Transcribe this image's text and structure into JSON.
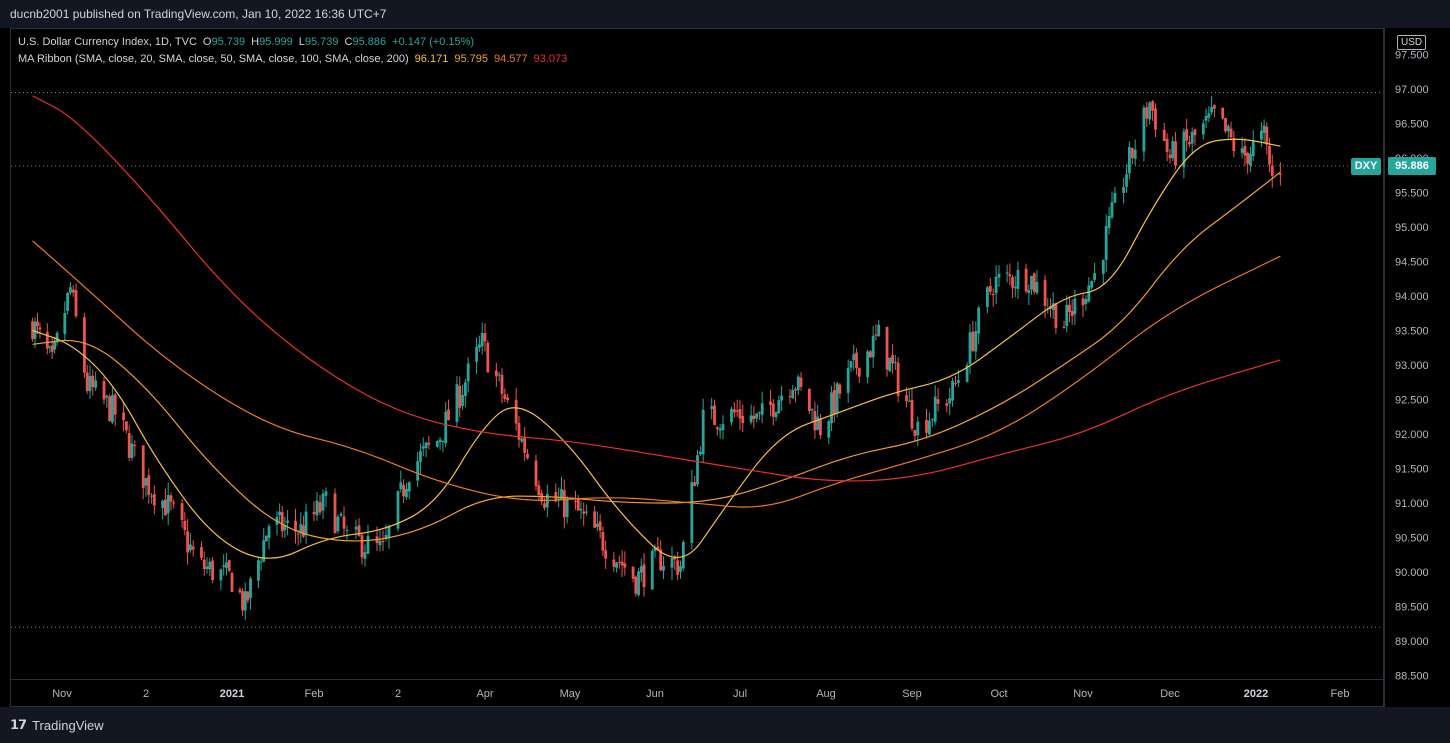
{
  "publisher": "ducnb2001 published on TradingView.com, Jan 10, 2022 16:36 UTC+7",
  "legend": {
    "symbol": "U.S. Dollar Currency Index, 1D, TVC",
    "o_label": "O",
    "o": "95.739",
    "h_label": "H",
    "h": "95.999",
    "l_label": "L",
    "l": "95.739",
    "c_label": "C",
    "c": "95.886",
    "change": "+0.147 (+0.15%)",
    "ribbon_label": "MA Ribbon (SMA, close, 20, SMA, close, 50, SMA, close, 100, SMA, close, 200)",
    "ma20": "96.171",
    "ma50": "95.795",
    "ma100": "94.577",
    "ma200": "93.073"
  },
  "currency": "USD",
  "symbol_tag": "DXY",
  "last_price": "95.886",
  "brand": "TradingView",
  "colors": {
    "up": "#26a69a",
    "down": "#ef5350",
    "ma20": "#f5c242",
    "ma50": "#f0a030",
    "ma100": "#f07828",
    "ma200": "#e83030",
    "background": "#000000",
    "panel": "#131722"
  },
  "chart_data": {
    "type": "candlestick",
    "title": "U.S. Dollar Currency Index, 1D, TVC",
    "y_ticks": [
      "97.500",
      "97.000",
      "96.500",
      "96.000",
      "95.500",
      "95.000",
      "94.500",
      "94.000",
      "93.500",
      "93.000",
      "92.500",
      "92.000",
      "91.500",
      "91.000",
      "90.500",
      "90.000",
      "89.500",
      "89.000",
      "88.500"
    ],
    "ylim": [
      88.5,
      97.5
    ],
    "x_ticks": [
      "Nov",
      "2",
      "2021",
      "Feb",
      "2",
      "Apr",
      "May",
      "Jun",
      "Jul",
      "Aug",
      "Sep",
      "Oct",
      "Nov",
      "Dec",
      "2022",
      "Feb"
    ],
    "close_path": [
      {
        "x": "2020-10-20",
        "y": 93.6
      },
      {
        "x": "2020-10-28",
        "y": 93.0
      },
      {
        "x": "2020-11-04",
        "y": 94.1
      },
      {
        "x": "2020-11-10",
        "y": 92.7
      },
      {
        "x": "2020-11-20",
        "y": 92.3
      },
      {
        "x": "2020-12-01",
        "y": 91.3
      },
      {
        "x": "2020-12-10",
        "y": 90.9
      },
      {
        "x": "2020-12-20",
        "y": 90.1
      },
      {
        "x": "2021-01-01",
        "y": 89.9
      },
      {
        "x": "2021-01-06",
        "y": 89.5
      },
      {
        "x": "2021-01-15",
        "y": 90.7
      },
      {
        "x": "2021-01-27",
        "y": 90.6
      },
      {
        "x": "2021-02-05",
        "y": 91.0
      },
      {
        "x": "2021-02-12",
        "y": 90.5
      },
      {
        "x": "2021-02-24",
        "y": 90.3
      },
      {
        "x": "2021-03-05",
        "y": 91.5
      },
      {
        "x": "2021-03-15",
        "y": 91.9
      },
      {
        "x": "2021-03-22",
        "y": 92.5
      },
      {
        "x": "2021-03-31",
        "y": 93.3
      },
      {
        "x": "2021-04-10",
        "y": 92.3
      },
      {
        "x": "2021-04-22",
        "y": 91.1
      },
      {
        "x": "2021-05-03",
        "y": 90.9
      },
      {
        "x": "2021-05-14",
        "y": 90.4
      },
      {
        "x": "2021-05-25",
        "y": 89.9
      },
      {
        "x": "2021-06-03",
        "y": 90.2
      },
      {
        "x": "2021-06-10",
        "y": 90.1
      },
      {
        "x": "2021-06-18",
        "y": 92.2
      },
      {
        "x": "2021-06-30",
        "y": 92.3
      },
      {
        "x": "2021-07-08",
        "y": 92.2
      },
      {
        "x": "2021-07-20",
        "y": 92.8
      },
      {
        "x": "2021-07-30",
        "y": 92.1
      },
      {
        "x": "2021-08-10",
        "y": 92.9
      },
      {
        "x": "2021-08-20",
        "y": 93.4
      },
      {
        "x": "2021-09-03",
        "y": 92.1
      },
      {
        "x": "2021-09-15",
        "y": 92.6
      },
      {
        "x": "2021-09-29",
        "y": 94.2
      },
      {
        "x": "2021-10-12",
        "y": 94.3
      },
      {
        "x": "2021-10-25",
        "y": 93.6
      },
      {
        "x": "2021-11-05",
        "y": 94.3
      },
      {
        "x": "2021-11-15",
        "y": 95.7
      },
      {
        "x": "2021-11-24",
        "y": 96.8
      },
      {
        "x": "2021-12-01",
        "y": 96.0
      },
      {
        "x": "2021-12-10",
        "y": 96.3
      },
      {
        "x": "2021-12-17",
        "y": 96.6
      },
      {
        "x": "2021-12-27",
        "y": 96.0
      },
      {
        "x": "2022-01-04",
        "y": 96.3
      },
      {
        "x": "2022-01-07",
        "y": 95.7
      },
      {
        "x": "2022-01-10",
        "y": 95.886
      }
    ],
    "series": [
      {
        "name": "SMA 20",
        "color": "#f5c242",
        "points": [
          {
            "x": "2020-10-20",
            "y": 93.5
          },
          {
            "x": "2020-11-05",
            "y": 93.3
          },
          {
            "x": "2020-11-20",
            "y": 92.7
          },
          {
            "x": "2020-12-05",
            "y": 91.6
          },
          {
            "x": "2020-12-25",
            "y": 90.5
          },
          {
            "x": "2021-01-15",
            "y": 90.1
          },
          {
            "x": "2021-02-05",
            "y": 90.5
          },
          {
            "x": "2021-02-25",
            "y": 90.6
          },
          {
            "x": "2021-03-15",
            "y": 91.0
          },
          {
            "x": "2021-03-31",
            "y": 92.1
          },
          {
            "x": "2021-04-12",
            "y": 92.5
          },
          {
            "x": "2021-04-30",
            "y": 91.9
          },
          {
            "x": "2021-05-20",
            "y": 90.8
          },
          {
            "x": "2021-06-10",
            "y": 90.0
          },
          {
            "x": "2021-06-25",
            "y": 90.9
          },
          {
            "x": "2021-07-15",
            "y": 92.0
          },
          {
            "x": "2021-08-05",
            "y": 92.3
          },
          {
            "x": "2021-08-25",
            "y": 92.6
          },
          {
            "x": "2021-09-15",
            "y": 92.8
          },
          {
            "x": "2021-10-05",
            "y": 93.4
          },
          {
            "x": "2021-10-25",
            "y": 94.0
          },
          {
            "x": "2021-11-10",
            "y": 94.1
          },
          {
            "x": "2021-11-25",
            "y": 95.3
          },
          {
            "x": "2021-12-10",
            "y": 96.2
          },
          {
            "x": "2021-12-25",
            "y": 96.3
          },
          {
            "x": "2022-01-10",
            "y": 96.171
          }
        ]
      },
      {
        "name": "SMA 50",
        "color": "#f0a030",
        "points": [
          {
            "x": "2020-10-20",
            "y": 93.3
          },
          {
            "x": "2020-11-10",
            "y": 93.4
          },
          {
            "x": "2020-12-01",
            "y": 92.7
          },
          {
            "x": "2020-12-25",
            "y": 91.5
          },
          {
            "x": "2021-01-20",
            "y": 90.6
          },
          {
            "x": "2021-02-15",
            "y": 90.4
          },
          {
            "x": "2021-03-10",
            "y": 90.6
          },
          {
            "x": "2021-04-01",
            "y": 91.1
          },
          {
            "x": "2021-04-25",
            "y": 91.1
          },
          {
            "x": "2021-05-20",
            "y": 91.0
          },
          {
            "x": "2021-06-20",
            "y": 91.0
          },
          {
            "x": "2021-07-15",
            "y": 91.3
          },
          {
            "x": "2021-08-10",
            "y": 91.7
          },
          {
            "x": "2021-09-05",
            "y": 91.9
          },
          {
            "x": "2021-10-01",
            "y": 92.4
          },
          {
            "x": "2021-10-25",
            "y": 93.0
          },
          {
            "x": "2021-11-15",
            "y": 93.6
          },
          {
            "x": "2021-12-05",
            "y": 94.7
          },
          {
            "x": "2021-12-25",
            "y": 95.3
          },
          {
            "x": "2022-01-10",
            "y": 95.795
          }
        ]
      },
      {
        "name": "SMA 100",
        "color": "#f07828",
        "points": [
          {
            "x": "2020-10-20",
            "y": 94.8
          },
          {
            "x": "2020-11-10",
            "y": 94.1
          },
          {
            "x": "2020-12-10",
            "y": 93.0
          },
          {
            "x": "2021-01-15",
            "y": 92.1
          },
          {
            "x": "2021-02-15",
            "y": 91.8
          },
          {
            "x": "2021-03-15",
            "y": 91.3
          },
          {
            "x": "2021-04-15",
            "y": 91.0
          },
          {
            "x": "2021-05-15",
            "y": 91.1
          },
          {
            "x": "2021-06-15",
            "y": 91.0
          },
          {
            "x": "2021-07-10",
            "y": 90.9
          },
          {
            "x": "2021-08-05",
            "y": 91.3
          },
          {
            "x": "2021-09-01",
            "y": 91.6
          },
          {
            "x": "2021-10-01",
            "y": 92.0
          },
          {
            "x": "2021-11-01",
            "y": 92.8
          },
          {
            "x": "2021-12-01",
            "y": 93.8
          },
          {
            "x": "2022-01-10",
            "y": 94.577
          }
        ]
      },
      {
        "name": "SMA 200",
        "color": "#e83030",
        "points": [
          {
            "x": "2020-10-20",
            "y": 96.9
          },
          {
            "x": "2020-11-05",
            "y": 96.6
          },
          {
            "x": "2020-12-01",
            "y": 95.5
          },
          {
            "x": "2021-01-01",
            "y": 94.0
          },
          {
            "x": "2021-02-01",
            "y": 93.0
          },
          {
            "x": "2021-03-01",
            "y": 92.3
          },
          {
            "x": "2021-04-01",
            "y": 92.0
          },
          {
            "x": "2021-05-01",
            "y": 91.9
          },
          {
            "x": "2021-06-01",
            "y": 91.7
          },
          {
            "x": "2021-07-01",
            "y": 91.5
          },
          {
            "x": "2021-08-01",
            "y": 91.3
          },
          {
            "x": "2021-09-01",
            "y": 91.35
          },
          {
            "x": "2021-10-01",
            "y": 91.7
          },
          {
            "x": "2021-11-01",
            "y": 92.0
          },
          {
            "x": "2021-12-01",
            "y": 92.6
          },
          {
            "x": "2022-01-10",
            "y": 93.073
          }
        ]
      }
    ],
    "reference_lines": [
      96.95,
      95.886,
      89.2
    ],
    "grid": false
  }
}
